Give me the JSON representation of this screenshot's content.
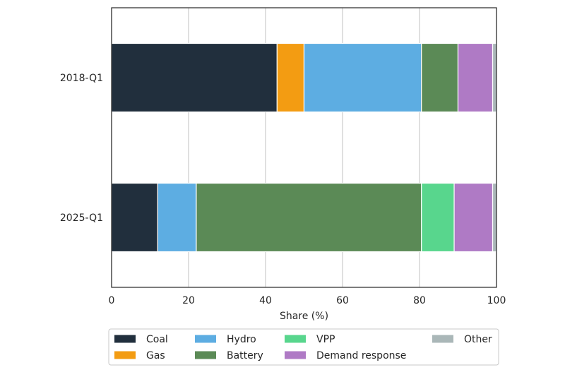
{
  "chart_data": {
    "type": "bar",
    "orientation": "horizontal",
    "stacked": true,
    "title": "",
    "xlabel": "Share (%)",
    "ylabel": "",
    "xlim": [
      0,
      100
    ],
    "xticks": [
      "0",
      "20",
      "40",
      "60",
      "80",
      "100"
    ],
    "xtick_values": [
      0,
      20,
      40,
      60,
      80,
      100
    ],
    "grid": true,
    "legend_position": "bottom",
    "categories": [
      "2018-Q1",
      "2025-Q1"
    ],
    "series": [
      {
        "name": "Coal",
        "color": "#212f3d",
        "values": [
          43,
          12
        ]
      },
      {
        "name": "Gas",
        "color": "#f39c12",
        "values": [
          7,
          0
        ]
      },
      {
        "name": "Hydro",
        "color": "#5dade2",
        "values": [
          30.5,
          10
        ]
      },
      {
        "name": "Battery",
        "color": "#5b8a56",
        "values": [
          9.5,
          58.5
        ]
      },
      {
        "name": "VPP",
        "color": "#58d68d",
        "values": [
          0,
          8.5
        ]
      },
      {
        "name": "Demand response",
        "color": "#af7ac5",
        "values": [
          9,
          10
        ]
      },
      {
        "name": "Other",
        "color": "#aab7b8",
        "values": [
          1,
          1
        ]
      }
    ]
  }
}
